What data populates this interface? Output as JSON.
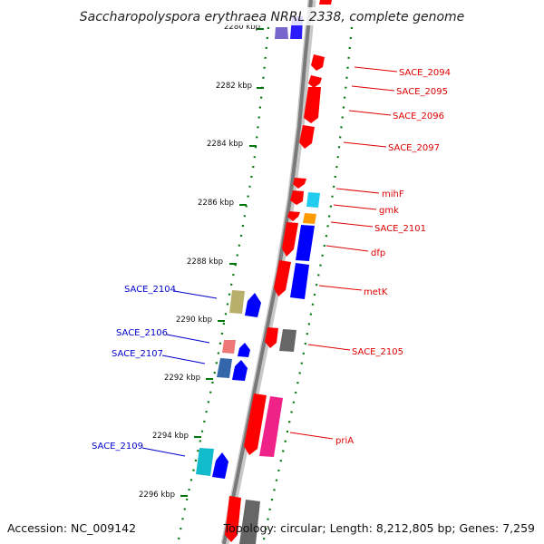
{
  "title": "Saccharopolyspora erythraea NRRL 2338, complete genome",
  "footer": {
    "accession": "Accession: NC_009142",
    "topology": "Topology: circular; Length: 8,212,805 bp; Genes: 7,259"
  },
  "colors": {
    "forward_label": "#dd0000",
    "reverse_label": "#0000cc",
    "tick": "#00770a",
    "backbone": "#8a8a8a"
  },
  "scale": {
    "unit": "kbp",
    "ticks": [
      {
        "label": "2280 kbp"
      },
      {
        "label": "2282 kbp"
      },
      {
        "label": "2284 kbp"
      },
      {
        "label": "2286 kbp"
      },
      {
        "label": "2288 kbp"
      },
      {
        "label": "2290 kbp"
      },
      {
        "label": "2292 kbp"
      },
      {
        "label": "2294 kbp"
      },
      {
        "label": "2296 kbp"
      }
    ]
  },
  "forward_genes": [
    {
      "name": "SACE_2094",
      "color": "#ff0000"
    },
    {
      "name": "SACE_2095",
      "color": "#ff0000"
    },
    {
      "name": "SACE_2096",
      "color": "#ff0000"
    },
    {
      "name": "SACE_2097",
      "color": "#ff0000"
    },
    {
      "name": "mihF",
      "color": "#ff0000"
    },
    {
      "name": "gmk",
      "color": "#ff0000"
    },
    {
      "name": "SACE_2101",
      "color": "#ff0000"
    },
    {
      "name": "dfp",
      "color": "#ff0000"
    },
    {
      "name": "metK",
      "color": "#ff0000"
    },
    {
      "name": "SACE_2105",
      "color": "#ff0000"
    },
    {
      "name": "priA",
      "color": "#ff0000"
    }
  ],
  "reverse_genes": [
    {
      "name": "SACE_2104",
      "color": "#0000ff"
    },
    {
      "name": "SACE_2106",
      "color": "#0000ff"
    },
    {
      "name": "SACE_2107",
      "color": "#0000ff"
    },
    {
      "name": "SACE_2109",
      "color": "#0000ff"
    }
  ]
}
